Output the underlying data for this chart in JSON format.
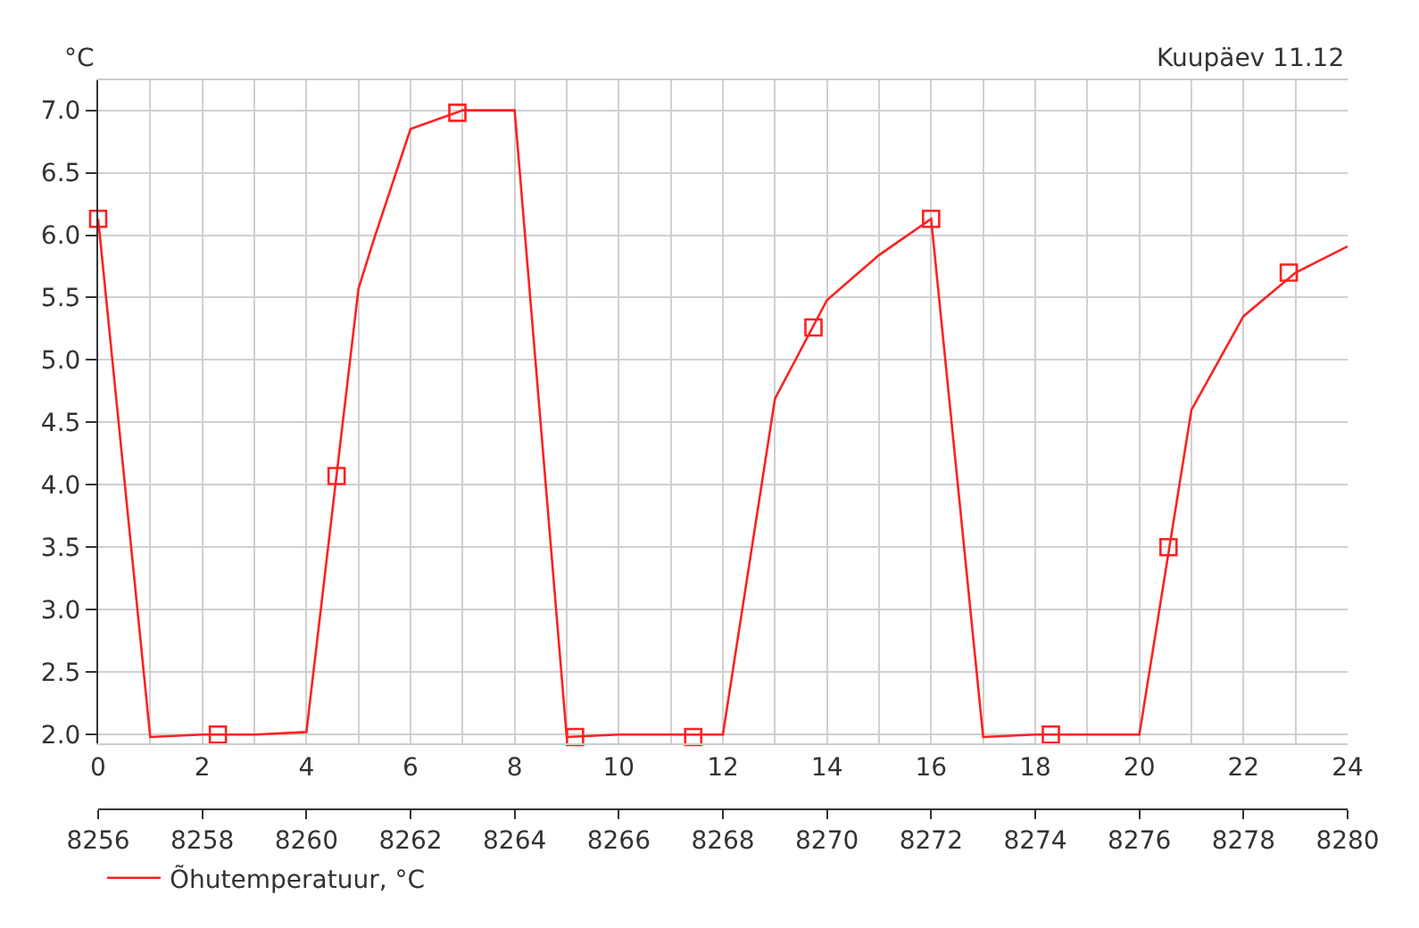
{
  "chart_data": {
    "type": "line",
    "ylabel": "°C",
    "annotations": [
      "Kuupäev 11.12"
    ],
    "xlim": [
      0,
      24
    ],
    "xticks": [
      0,
      {
        "value": 1,
        "label": null
      },
      2,
      {
        "value": 3,
        "label": null
      },
      4,
      {
        "value": 5,
        "label": null
      },
      6,
      {
        "value": 7,
        "label": null
      },
      8,
      {
        "value": 9,
        "label": null
      },
      10,
      {
        "value": 11,
        "label": null
      },
      12,
      {
        "value": 13,
        "label": null
      },
      14,
      {
        "value": 15,
        "label": null
      },
      16,
      {
        "value": 17,
        "label": null
      },
      18,
      {
        "value": 19,
        "label": null
      },
      20,
      {
        "value": 21,
        "label": null
      },
      22,
      {
        "value": 23,
        "label": null
      },
      24
    ],
    "x2lim": [
      8256,
      8280
    ],
    "x2ticks": [
      8256,
      8258,
      8260,
      8262,
      8264,
      8266,
      8268,
      8270,
      8272,
      8274,
      8276,
      8278,
      8280
    ],
    "ylim": [
      1.93,
      7.24
    ],
    "yticks": [
      {
        "value": 2,
        "label": "2.0"
      },
      2.5,
      {
        "value": 3,
        "label": "3.0"
      },
      3.5,
      {
        "value": 4,
        "label": "4.0"
      },
      4.5,
      {
        "value": 5,
        "label": "5.0"
      },
      5.5,
      {
        "value": 6,
        "label": "6.0"
      },
      6.5,
      {
        "value": 7,
        "label": "7.0"
      }
    ],
    "grid": true,
    "legend": "bottom left",
    "series": [
      {
        "name": "Õhutemperatuur, °C",
        "color": "#ff2020",
        "marker": "none",
        "x": [
          0,
          1,
          2,
          3,
          4,
          5,
          5.3,
          6,
          7,
          8,
          9,
          10,
          11,
          12,
          13,
          14,
          15,
          16,
          17,
          18,
          19,
          20,
          21,
          22,
          23,
          24
        ],
        "values": [
          6.13,
          1.98,
          2.0,
          2.0,
          2.02,
          5.57,
          5.97,
          6.85,
          7.0,
          7.0,
          1.98,
          2.0,
          2.0,
          2.0,
          4.69,
          5.48,
          5.84,
          6.13,
          1.98,
          2.0,
          2.0,
          2.0,
          4.6,
          5.35,
          5.7,
          5.91
        ]
      },
      {
        "type": "scatter",
        "color": "#ff2020",
        "marker": "square",
        "x": [
          0,
          2.3,
          4.58,
          6.9,
          9.16,
          11.43,
          13.74,
          16.0,
          18.3,
          20.56,
          22.87
        ],
        "values": [
          6.13,
          2.0,
          4.07,
          6.98,
          1.98,
          1.98,
          5.26,
          6.13,
          2.0,
          3.5,
          5.7
        ]
      }
    ]
  }
}
